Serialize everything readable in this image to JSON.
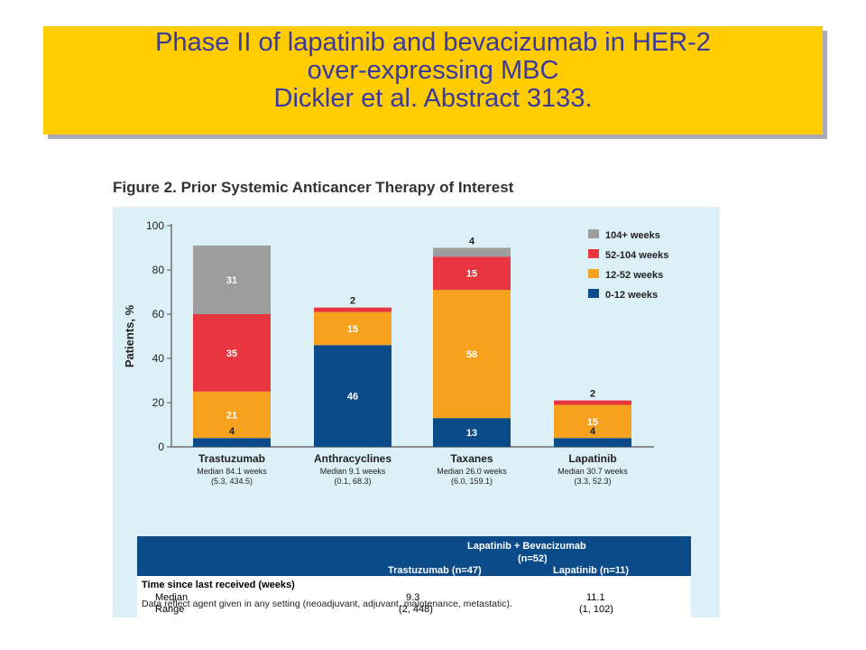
{
  "slide": {
    "title_lines": [
      "Phase II of lapatinib and bevacizumab in HER-2",
      "over-expressing MBC",
      "Dickler et al. Abstract 3133."
    ]
  },
  "figure": {
    "title": "Figure 2. Prior Systemic Anticancer Therapy of Interest"
  },
  "chart_data": {
    "type": "bar",
    "stacked": true,
    "title": "Figure 2. Prior Systemic Anticancer Therapy of Interest",
    "ylabel": "Patients, %",
    "xlabel": "",
    "ylim": [
      0,
      100
    ],
    "yticks": [
      0,
      20,
      40,
      60,
      80,
      100
    ],
    "grid": false,
    "legend_position": "top-right",
    "categories": [
      "Trastuzumab",
      "Anthracyclines",
      "Taxanes",
      "Lapatinib"
    ],
    "category_sublabels": [
      [
        "Median 84.1 weeks",
        "(5.3, 434.5)"
      ],
      [
        "Median 9.1 weeks",
        "(0.1, 68.3)"
      ],
      [
        "Median 26.0 weeks",
        "(6.0, 159.1)"
      ],
      [
        "Median 30.7 weeks",
        "(3.3, 52.3)"
      ]
    ],
    "series": [
      {
        "name": "0-12 weeks",
        "color": "#0b4b8a",
        "values": [
          4,
          46,
          13,
          4
        ]
      },
      {
        "name": "12-52 weeks",
        "color": "#f6a21e",
        "values": [
          21,
          15,
          58,
          15
        ]
      },
      {
        "name": "52-104 weeks",
        "color": "#e8353f",
        "values": [
          35,
          2,
          15,
          2
        ]
      },
      {
        "name": "104+ weeks",
        "color": "#9d9d9d",
        "values": [
          31,
          0,
          4,
          0
        ]
      }
    ],
    "legend_order": [
      "104+ weeks",
      "52-104 weeks",
      "12-52 weeks",
      "0-12 weeks"
    ]
  },
  "table": {
    "group_header": [
      "Lapatinib + Bevacizumab",
      "(n=52)"
    ],
    "columns": [
      "Trastuzumab (n=47)",
      "Lapatinib (n=11)"
    ],
    "section_label": "Time since last received (weeks)",
    "rows": [
      {
        "label": "Median",
        "values": [
          "9.3",
          "11.1"
        ]
      },
      {
        "label": "Range",
        "values": [
          "(2, 448)",
          "(1, 102)"
        ]
      }
    ],
    "footnote": "Data reflect agent given in any setting (neoadjuvant, adjuvant, maintenance, metastatic)."
  }
}
